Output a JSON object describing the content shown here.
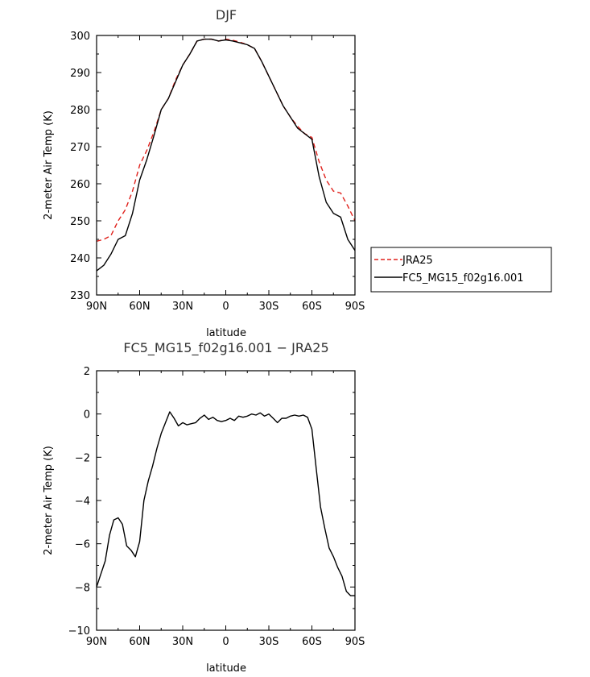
{
  "chart_data": [
    {
      "type": "line",
      "title": "DJF",
      "xlabel": "latitude",
      "ylabel": "2-meter Air Temp (K)",
      "xlim": [
        90,
        -90
      ],
      "ylim": [
        230,
        300
      ],
      "x_ticks": [
        90,
        60,
        30,
        0,
        -30,
        -60,
        -90
      ],
      "x_tick_labels": [
        "90N",
        "60N",
        "30N",
        "0",
        "30S",
        "60S",
        "90S"
      ],
      "y_ticks": [
        230,
        240,
        250,
        260,
        270,
        280,
        290,
        300
      ],
      "y_tick_labels": [
        "230",
        "240",
        "250",
        "260",
        "270",
        "280",
        "290",
        "300"
      ],
      "legend_position": "outside-right",
      "series": [
        {
          "name": "JRA25",
          "color": "#e0201b",
          "dash": "dashed",
          "x": [
            90,
            85,
            80,
            75,
            70,
            65,
            60,
            55,
            50,
            45,
            40,
            35,
            30,
            25,
            20,
            15,
            10,
            5,
            0,
            -5,
            -10,
            -15,
            -20,
            -25,
            -30,
            -35,
            -40,
            -45,
            -50,
            -55,
            -60,
            -65,
            -70,
            -75,
            -80,
            -85,
            -90
          ],
          "y": [
            244.5,
            245,
            246,
            250,
            253,
            258,
            265,
            269,
            274,
            280,
            283,
            288,
            292,
            295,
            298.5,
            299,
            299,
            298.5,
            299,
            298.7,
            298.2,
            297.5,
            296.5,
            293,
            289,
            285,
            281,
            278,
            275.5,
            273.5,
            272.5,
            266,
            261,
            258,
            257.5,
            254,
            250
          ]
        },
        {
          "name": "FC5_MG15_f02g16.001",
          "color": "#000000",
          "dash": "solid",
          "x": [
            90,
            85,
            80,
            75,
            70,
            65,
            60,
            55,
            50,
            45,
            40,
            35,
            30,
            25,
            20,
            15,
            10,
            5,
            0,
            -5,
            -10,
            -15,
            -20,
            -25,
            -30,
            -35,
            -40,
            -45,
            -50,
            -55,
            -60,
            -65,
            -70,
            -75,
            -80,
            -85,
            -90
          ],
          "y": [
            236.5,
            238,
            241,
            245,
            246,
            252,
            261,
            266.5,
            273,
            280,
            283,
            287.5,
            292,
            295,
            298.5,
            299,
            299,
            298.5,
            298.8,
            298.5,
            298,
            297.5,
            296.5,
            293,
            289,
            285,
            281,
            278,
            275,
            273.5,
            272,
            262,
            255,
            252,
            251,
            245,
            242
          ]
        }
      ]
    },
    {
      "type": "line",
      "title": "FC5_MG15_f02g16.001 − JRA25",
      "xlabel": "latitude",
      "ylabel": "2-meter Air Temp (K)",
      "xlim": [
        90,
        -90
      ],
      "ylim": [
        -10,
        2
      ],
      "x_ticks": [
        90,
        60,
        30,
        0,
        -30,
        -60,
        -90
      ],
      "x_tick_labels": [
        "90N",
        "60N",
        "30N",
        "0",
        "30S",
        "60S",
        "90S"
      ],
      "y_ticks": [
        -10,
        -8,
        -6,
        -4,
        -2,
        0,
        2
      ],
      "y_tick_labels": [
        "−10",
        "−8",
        "−6",
        "−4",
        "−2",
        "0",
        "2"
      ],
      "series": [
        {
          "color": "#000000",
          "dash": "solid",
          "x": [
            90,
            87,
            84,
            81,
            78,
            75,
            72,
            69,
            66,
            63,
            60,
            57,
            54,
            51,
            48,
            45,
            42,
            39,
            36,
            33,
            30,
            27,
            24,
            21,
            18,
            15,
            12,
            9,
            6,
            3,
            0,
            -3,
            -6,
            -9,
            -12,
            -15,
            -18,
            -21,
            -24,
            -27,
            -30,
            -33,
            -36,
            -39,
            -42,
            -45,
            -48,
            -51,
            -54,
            -57,
            -60,
            -63,
            -66,
            -69,
            -72,
            -75,
            -78,
            -81,
            -84,
            -87,
            -90
          ],
          "y": [
            -8,
            -7.4,
            -6.8,
            -5.6,
            -4.9,
            -4.8,
            -5.1,
            -6.1,
            -6.3,
            -6.6,
            -5.9,
            -4.0,
            -3.1,
            -2.4,
            -1.6,
            -0.9,
            -0.4,
            0.1,
            -0.2,
            -0.55,
            -0.4,
            -0.5,
            -0.45,
            -0.4,
            -0.2,
            -0.05,
            -0.25,
            -0.15,
            -0.3,
            -0.35,
            -0.3,
            -0.2,
            -0.3,
            -0.1,
            -0.15,
            -0.1,
            0,
            -0.05,
            0.05,
            -0.1,
            0,
            -0.2,
            -0.4,
            -0.2,
            -0.2,
            -0.1,
            -0.05,
            -0.1,
            -0.05,
            -0.15,
            -0.7,
            -2.5,
            -4.3,
            -5.3,
            -6.2,
            -6.6,
            -7.1,
            -7.5,
            -8.2,
            -8.4,
            -8.4
          ]
        }
      ]
    }
  ]
}
